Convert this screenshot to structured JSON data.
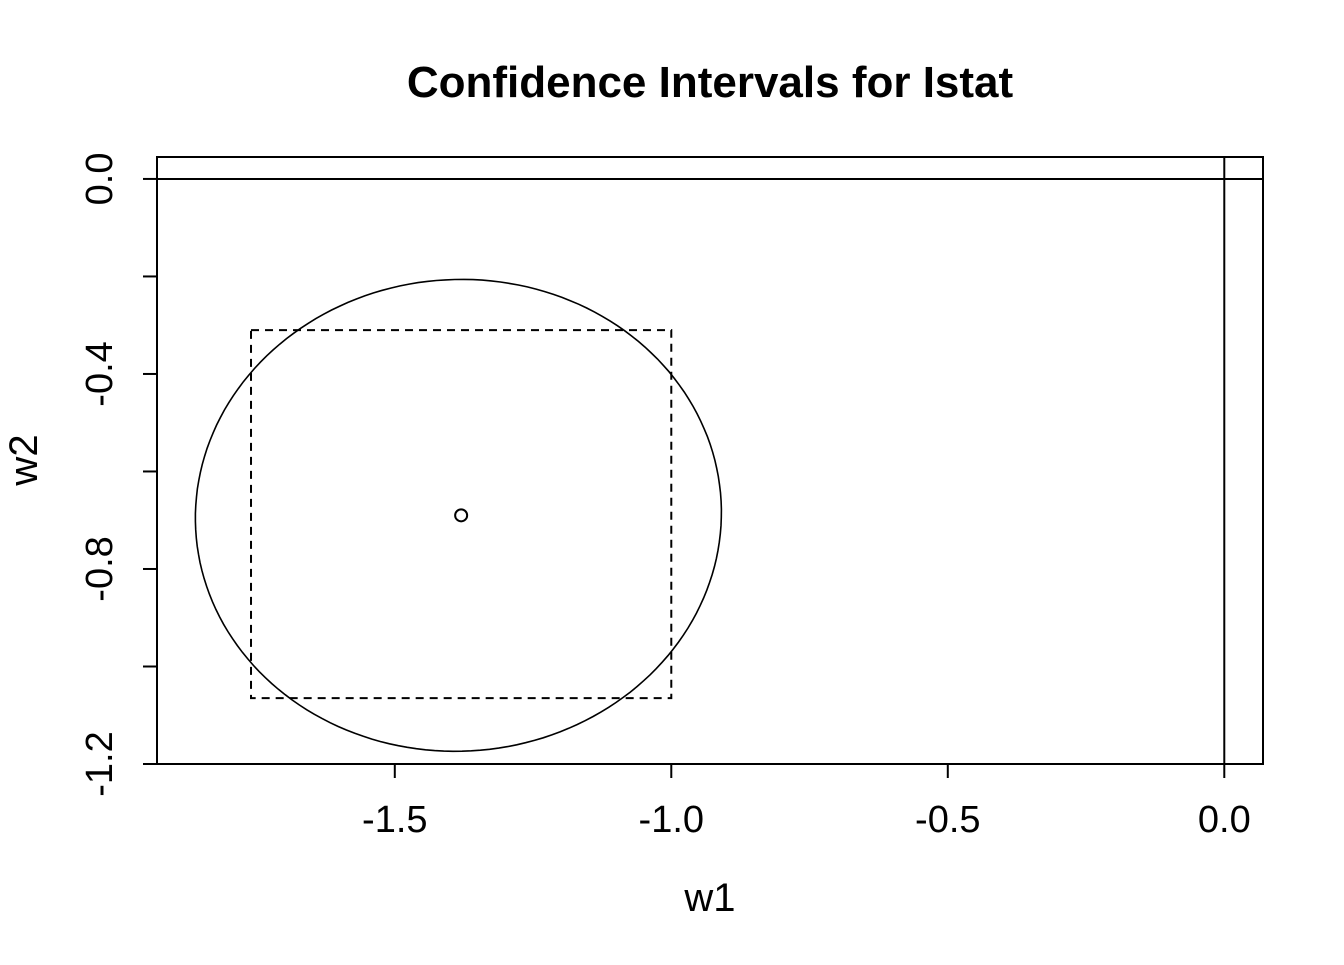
{
  "chart_data": {
    "type": "scatter",
    "title": "Confidence Intervals for Istat",
    "xlabel": "w1",
    "ylabel": "w2",
    "xlim": [
      -1.93,
      0.07
    ],
    "ylim": [
      -1.2,
      0.045
    ],
    "x_ticks": [
      -1.5,
      -1.0,
      -0.5,
      0.0
    ],
    "x_tick_labels": [
      "-1.5",
      "-1.0",
      "-0.5",
      "0.0"
    ],
    "y_ticks": [
      -1.2,
      -1.0,
      -0.8,
      -0.6,
      -0.4,
      -0.2,
      0.0
    ],
    "y_tick_labels": [
      "-1.2",
      "",
      "-0.8",
      "",
      "-0.4",
      "",
      "0.0"
    ],
    "reference_lines": {
      "x": 0.0,
      "y": 0.0
    },
    "point_estimate": {
      "x": -1.38,
      "y": -0.69
    },
    "rectangle": {
      "x_min": -1.76,
      "x_max": -1.0,
      "y_min": -1.065,
      "y_max": -0.31,
      "style": "dashed"
    },
    "ellipse": {
      "center": [
        -1.385,
        -0.69
      ],
      "boundary_points": [
        [
          -0.925,
          -0.65
        ],
        [
          -1.35,
          -0.215
        ],
        [
          -1.865,
          -0.72
        ],
        [
          -1.42,
          -1.165
        ],
        [
          -0.96,
          -0.89
        ],
        [
          -1.62,
          -0.27
        ],
        [
          -1.77,
          -1.0
        ],
        [
          -1.13,
          -1.11
        ]
      ]
    },
    "grid": false,
    "legend": "none"
  }
}
